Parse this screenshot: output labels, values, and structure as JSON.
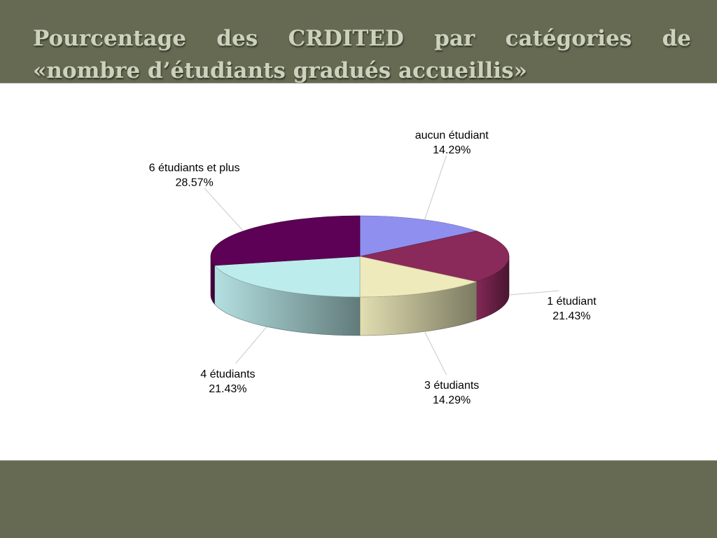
{
  "slide": {
    "title": "Pourcentage des CRDITED par catégories de «nombre d’étudiants gradués accueillis»"
  },
  "chart_data": {
    "type": "pie",
    "title": "",
    "series": [
      {
        "categories": [
          "aucun étudiant",
          "1 étudiant",
          "3 étudiants",
          "4 étudiants",
          "6 étudiants et plus"
        ],
        "values": [
          14.29,
          21.43,
          14.29,
          21.43,
          28.57
        ],
        "value_labels": [
          "14.29%",
          "21.43%",
          "14.29%",
          "21.43%",
          "28.57%"
        ],
        "colors": [
          "#8f8fef",
          "#8a2a5a",
          "#eeeabb",
          "#bdeced",
          "#5c0155"
        ]
      }
    ],
    "legend": "none",
    "style": "3d"
  }
}
